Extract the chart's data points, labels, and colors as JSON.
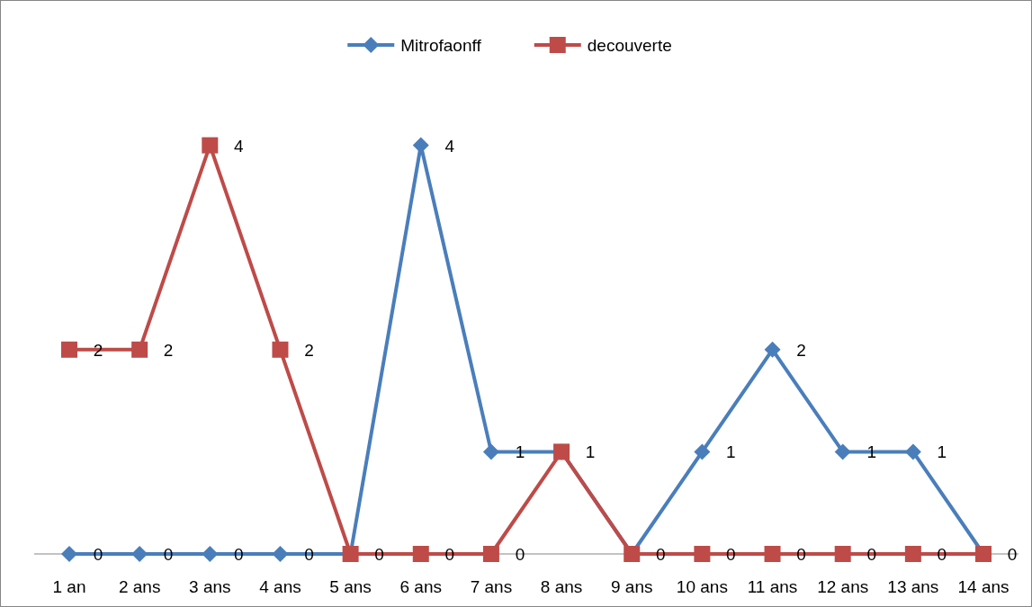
{
  "chart_data": {
    "type": "line",
    "categories": [
      "1 an",
      "2 ans",
      "3 ans",
      "4 ans",
      "5 ans",
      "6 ans",
      "7 ans",
      "8 ans",
      "9 ans",
      "10 ans",
      "11 ans",
      "12 ans",
      "13 ans",
      "14 ans"
    ],
    "series": [
      {
        "name": "Mitrofaonff",
        "color": "#4a7ebb",
        "marker": "diamond",
        "values": [
          0,
          0,
          0,
          0,
          0,
          4,
          1,
          1,
          0,
          1,
          2,
          1,
          1,
          0
        ]
      },
      {
        "name": "decouverte",
        "color": "#be4b48",
        "marker": "square",
        "values": [
          2,
          2,
          4,
          2,
          0,
          0,
          0,
          1,
          0,
          0,
          0,
          0,
          0,
          0
        ],
        "value_labels": [
          "2",
          "2",
          "4",
          "2",
          null,
          "0",
          "0",
          null,
          null,
          "0",
          "0",
          "0",
          "0",
          null
        ]
      }
    ],
    "data_labels": true,
    "legend": "top",
    "tick_labels": "x"
  }
}
